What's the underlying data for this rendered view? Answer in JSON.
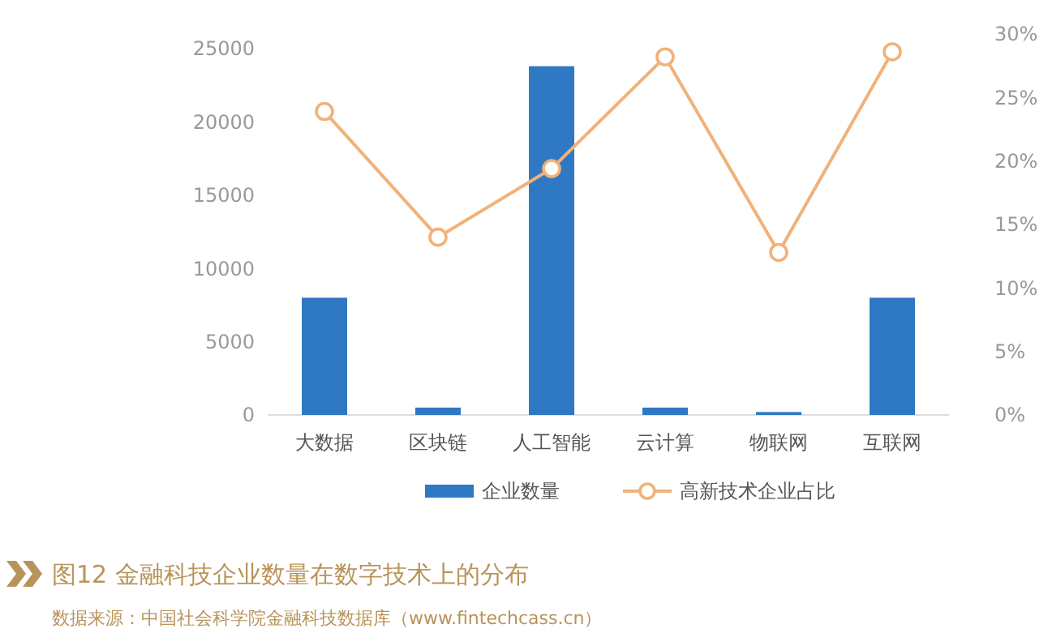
{
  "chart_data": {
    "type": "bar",
    "title": "图12  金融科技企业数量在数字技术上的分布",
    "categories": [
      "大数据",
      "区块链",
      "人工智能",
      "云计算",
      "物联网",
      "互联网"
    ],
    "series": [
      {
        "name": "企业数量",
        "color": "#2f78c4",
        "values": [
          8000,
          500,
          23800,
          500,
          200,
          8000
        ]
      },
      {
        "name": "高新技术企业占比",
        "type": "line",
        "axis": "y2",
        "color": "#f0b27a",
        "marker": "circle",
        "values": [
          23.9,
          14.0,
          19.4,
          28.2,
          12.8,
          28.6
        ]
      }
    ],
    "ylim": [
      0,
      25000
    ],
    "yticks": [
      0,
      5000,
      10000,
      15000,
      20000,
      25000
    ],
    "y2lim": [
      0,
      30
    ],
    "y2ticks": [
      {
        "value": 0,
        "label": "0%"
      },
      {
        "value": 5,
        "label": "5%"
      },
      {
        "value": 10,
        "label": "10%"
      },
      {
        "value": 15,
        "label": "15%"
      },
      {
        "value": 20,
        "label": "20%"
      },
      {
        "value": 25,
        "label": "25%"
      },
      {
        "value": 30,
        "label": "30%"
      }
    ],
    "legend": "bottom",
    "grid": false,
    "annotations": [
      "数据来源：中国社会科学院金融科技数据库（www.fintechcass.cn）"
    ]
  }
}
